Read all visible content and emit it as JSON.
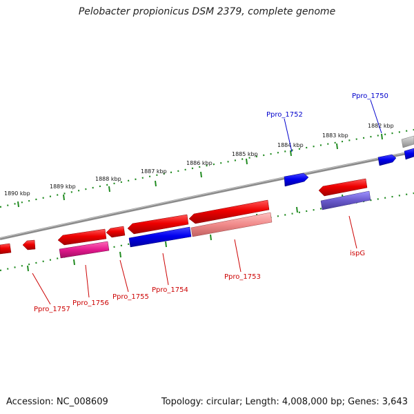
{
  "title": "Pelobacter propionicus DSM 2379, complete genome",
  "footer": {
    "accession": "Accession: NC_008609",
    "summary": "Topology: circular; Length: 4,008,000 bp; Genes: 3,643"
  },
  "scale": {
    "unit_label_suffix": " kbp",
    "ticks": [
      {
        "kbp": 1882,
        "label": "1882 kbp"
      },
      {
        "kbp": 1883,
        "label": "1883 kbp"
      },
      {
        "kbp": 1884,
        "label": "1884 kbp"
      },
      {
        "kbp": 1885,
        "label": "1885 kbp"
      },
      {
        "kbp": 1886,
        "label": "1886 kbp"
      },
      {
        "kbp": 1887,
        "label": "1887 kbp"
      },
      {
        "kbp": 1888,
        "label": "1888 kbp"
      },
      {
        "kbp": 1889,
        "label": "1889 kbp"
      },
      {
        "kbp": 1890,
        "label": "1890 kbp"
      }
    ]
  },
  "genes": [
    {
      "label": "Ppro_1750",
      "color": "#0000cc"
    },
    {
      "label": "Ppro_1752",
      "color": "#0000cc"
    },
    {
      "label": "Ppro_1753",
      "color": "#cc0000"
    },
    {
      "label": "Ppro_1754",
      "color": "#cc0000"
    },
    {
      "label": "Ppro_1755",
      "color": "#cc0000"
    },
    {
      "label": "Ppro_1756",
      "color": "#cc0000"
    },
    {
      "label": "Ppro_1757",
      "color": "#cc0000"
    },
    {
      "label": "ispG",
      "color": "#cc0000"
    }
  ],
  "colors": {
    "backbone": "#8a8a8a",
    "tick": "#1f8a1f",
    "forward_cds": "#ee0000",
    "reverse_cds": "#0000ee",
    "rrna_pink": "#e2188c",
    "light_red": "#f08a8a",
    "purple": "#6a5acd",
    "grey_feature": "#b5b5b5"
  }
}
